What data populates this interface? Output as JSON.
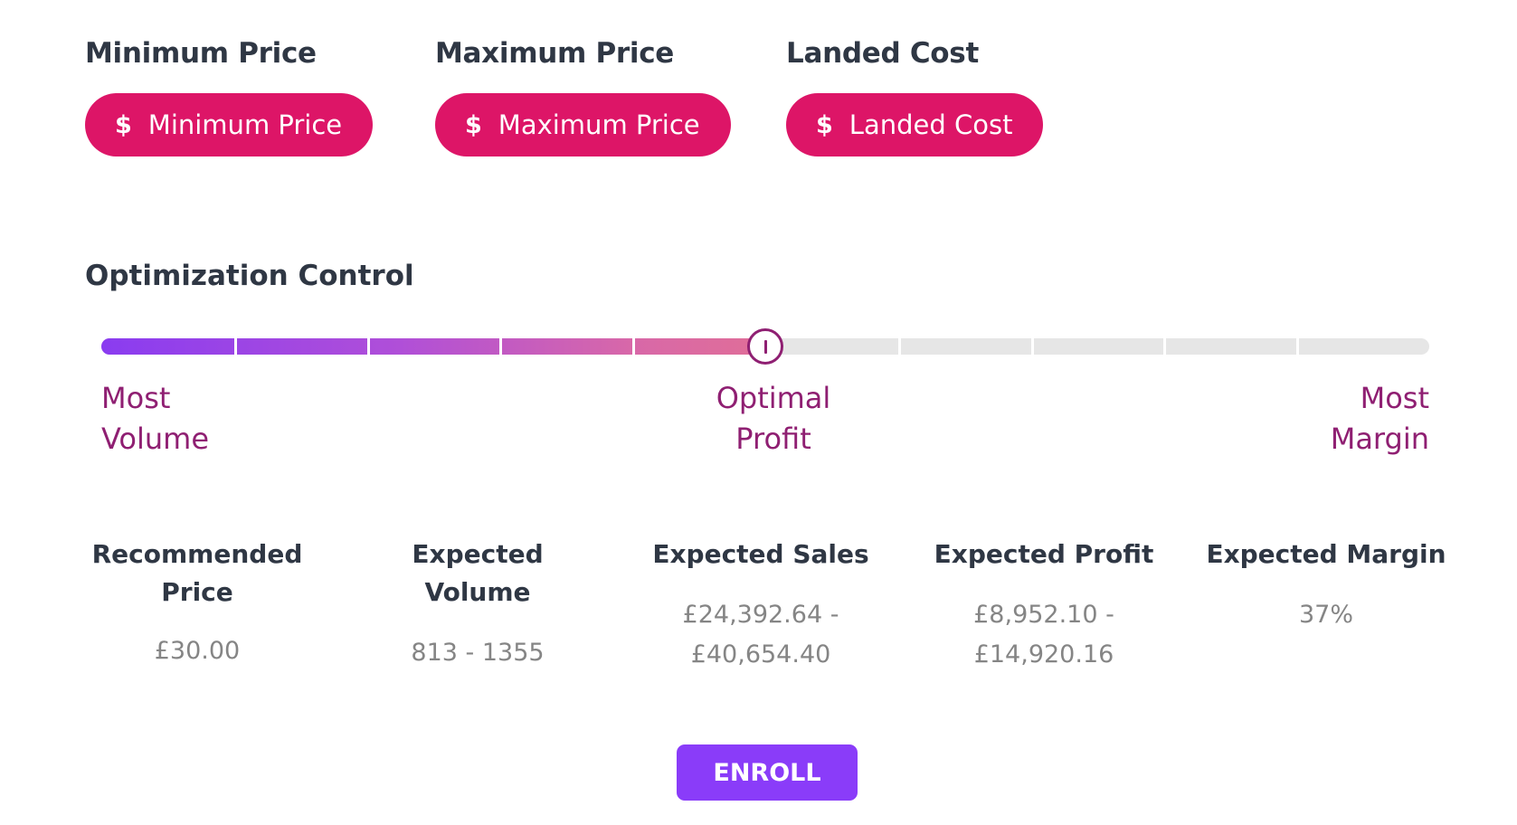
{
  "price_fields": [
    {
      "label": "Minimum Price",
      "currency_symbol": "$",
      "placeholder": "Minimum Price"
    },
    {
      "label": "Maximum Price",
      "currency_symbol": "$",
      "placeholder": "Maximum Price"
    },
    {
      "label": "Landed Cost",
      "currency_symbol": "$",
      "placeholder": "Landed Cost"
    }
  ],
  "optimization": {
    "title": "Optimization Control",
    "slider": {
      "value": 0.5,
      "steps": 10,
      "left_label": "Most\nVolume",
      "center_label": "Optimal\nProfit",
      "right_label": "Most\nMargin"
    }
  },
  "metrics": {
    "recommended_price": {
      "title": "Recommended Price",
      "value": "£30.00"
    },
    "expected_volume": {
      "title": "Expected Volume",
      "value": "813 - 1355"
    },
    "expected_sales": {
      "title": "Expected Sales",
      "value": "£24,392.64 - £40,654.40"
    },
    "expected_profit": {
      "title": "Expected Profit",
      "value": "£8,952.10 - £14,920.16"
    },
    "expected_margin": {
      "title": "Expected Margin",
      "value": "37%"
    }
  },
  "enroll_label": "ENROLL",
  "colors": {
    "pill": "#dd1567",
    "accent": "#8f1f72",
    "enroll": "#8a3cf9",
    "track": "#e6e6e6"
  },
  "icons": {
    "price_field": "dollar-icon",
    "slider_thumb": "grip-icon"
  }
}
